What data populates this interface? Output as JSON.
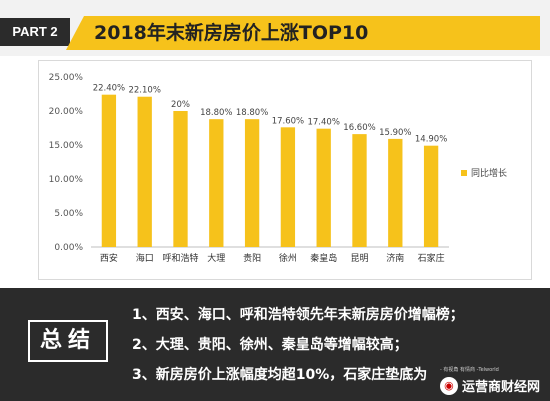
{
  "header": {
    "part_label": "PART 2",
    "title": "2018年末新房房价上涨TOP10"
  },
  "chart_data": {
    "type": "bar",
    "categories": [
      "西安",
      "海口",
      "呼和浩特",
      "大理",
      "贵阳",
      "徐州",
      "秦皇岛",
      "昆明",
      "济南",
      "石家庄"
    ],
    "series": [
      {
        "name": "同比增长",
        "values": [
          22.4,
          22.1,
          20.0,
          18.8,
          18.8,
          17.6,
          17.4,
          16.6,
          15.9,
          14.9
        ],
        "labels": [
          "22.40%",
          "22.10%",
          "20%",
          "18.80%",
          "18.80%",
          "17.60%",
          "17.40%",
          "16.60%",
          "15.90%",
          "14.90%"
        ]
      }
    ],
    "ylim": [
      0,
      25
    ],
    "yticks": [
      "0.00%",
      "5.00%",
      "10.00%",
      "15.00%",
      "20.00%",
      "25.00%"
    ],
    "ytick_values": [
      0,
      5,
      10,
      15,
      20,
      25
    ],
    "grid": false,
    "legend_position": "right",
    "bar_color": "#f6c21b"
  },
  "summary": {
    "label": "总结",
    "lines": [
      "1、西安、海口、呼和浩特领先年末新房房价增幅榜；",
      "2、大理、贵阳、徐州、秦皇岛等增幅较高；",
      "3、新房房价上涨幅度均超10%，石家庄垫底为"
    ]
  },
  "watermark": {
    "small_text": "- 有视角 有情商 -Telworld",
    "brand": "运营商财经网"
  }
}
